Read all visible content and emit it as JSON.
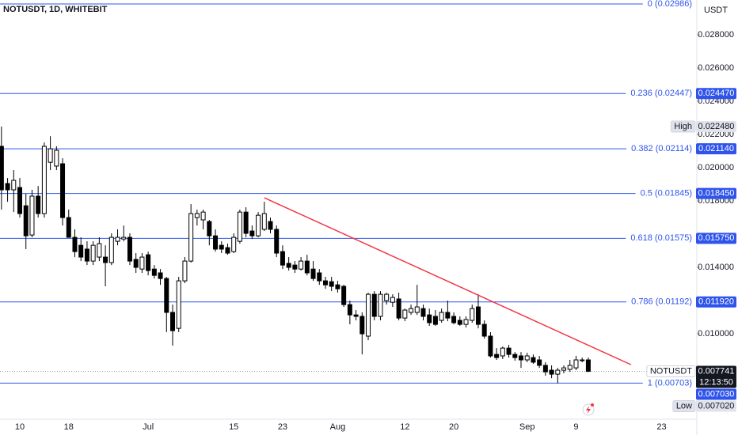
{
  "chart_data": {
    "type": "candlestick",
    "title": "NOTUSDT, 1D, WHITEBIT",
    "currency": "USDT",
    "categories": [
      null,
      null,
      null,
      "10",
      null,
      null,
      null,
      null,
      null,
      null,
      null,
      "18",
      null,
      null,
      null,
      null,
      null,
      null,
      null,
      null,
      null,
      null,
      null,
      null,
      "Jul",
      null,
      null,
      null,
      null,
      null,
      null,
      null,
      null,
      null,
      null,
      null,
      null,
      null,
      "15",
      null,
      null,
      null,
      null,
      null,
      null,
      null,
      "23",
      null,
      null,
      null,
      null,
      null,
      null,
      null,
      null,
      "Aug",
      null,
      null,
      null,
      null,
      null,
      null,
      null,
      null,
      null,
      null,
      "12",
      null,
      null,
      null,
      null,
      null,
      null,
      null,
      "20",
      null,
      null,
      null,
      null,
      null,
      null,
      null,
      null,
      null,
      null,
      null,
      "Sep",
      null,
      null,
      null,
      null,
      null,
      null,
      null,
      "9",
      null,
      null,
      null,
      null,
      null,
      null,
      null,
      null,
      null,
      null,
      null,
      null,
      null,
      "23",
      null,
      null,
      null,
      null,
      null
    ],
    "ohlc": [
      [
        0.02129,
        0.02248,
        0.01748,
        0.01867
      ],
      [
        0.01905,
        0.01938,
        0.01795,
        0.01867
      ],
      [
        0.01867,
        0.01986,
        0.01733,
        0.01924
      ],
      [
        0.01881,
        0.01938,
        0.017,
        0.01724
      ],
      [
        0.01771,
        0.01843,
        0.0151,
        0.0159
      ],
      [
        0.01595,
        0.01867,
        0.01581,
        0.01829
      ],
      [
        0.01829,
        0.0189,
        0.017,
        0.01724
      ],
      [
        0.01724,
        0.02152,
        0.017,
        0.02129
      ],
      [
        0.02033,
        0.0219,
        0.01986,
        0.02114
      ],
      [
        0.0201,
        0.02129,
        0.01986,
        0.02105
      ],
      [
        0.02024,
        0.02057,
        0.01652,
        0.017
      ],
      [
        0.017,
        0.01748,
        0.01581,
        0.01581
      ],
      [
        0.01581,
        0.01629,
        0.01462,
        0.01495
      ],
      [
        0.01533,
        0.01581,
        0.01438,
        0.01462
      ],
      [
        0.0151,
        0.01557,
        0.01414,
        0.01438
      ],
      [
        0.01438,
        0.01557,
        0.01414,
        0.01533
      ],
      [
        0.01462,
        0.01581,
        0.01438,
        0.01543
      ],
      [
        0.01462,
        0.01533,
        0.01286,
        0.01429
      ],
      [
        0.01429,
        0.01605,
        0.01414,
        0.01581
      ],
      [
        0.01557,
        0.01629,
        0.01533,
        0.01581
      ],
      [
        0.01571,
        0.01652,
        0.01557,
        0.01581
      ],
      [
        0.01581,
        0.01605,
        0.01414,
        0.01438
      ],
      [
        0.01448,
        0.01486,
        0.01367,
        0.014
      ],
      [
        0.0139,
        0.01486,
        0.01367,
        0.01462
      ],
      [
        0.01476,
        0.01495,
        0.01352,
        0.01381
      ],
      [
        0.0139,
        0.01414,
        0.01333,
        0.01352
      ],
      [
        0.01367,
        0.0139,
        0.01295,
        0.01333
      ],
      [
        0.01333,
        0.01343,
        0.0101,
        0.01129
      ],
      [
        0.01129,
        0.01176,
        0.00929,
        0.01019
      ],
      [
        0.01033,
        0.01343,
        0.0101,
        0.01319
      ],
      [
        0.01319,
        0.01462,
        0.01305,
        0.01438
      ],
      [
        0.01438,
        0.01781,
        0.01429,
        0.01724
      ],
      [
        0.017,
        0.01748,
        0.01652,
        0.01724
      ],
      [
        0.01686,
        0.01748,
        0.01629,
        0.01733
      ],
      [
        0.01676,
        0.01686,
        0.01533,
        0.0159
      ],
      [
        0.0159,
        0.01629,
        0.01495,
        0.0151
      ],
      [
        0.01533,
        0.01557,
        0.01486,
        0.0151
      ],
      [
        0.01519,
        0.01543,
        0.01476,
        0.01486
      ],
      [
        0.01495,
        0.01605,
        0.01486,
        0.01581
      ],
      [
        0.01557,
        0.01748,
        0.01543,
        0.01733
      ],
      [
        0.01733,
        0.01762,
        0.01581,
        0.01605
      ],
      [
        0.01619,
        0.01652,
        0.01571,
        0.0159
      ],
      [
        0.0159,
        0.01733,
        0.01581,
        0.01714
      ],
      [
        0.01629,
        0.01795,
        0.01619,
        0.01724
      ],
      [
        0.01676,
        0.017,
        0.01605,
        0.01629
      ],
      [
        0.01629,
        0.01652,
        0.01462,
        0.01486
      ],
      [
        0.01495,
        0.01533,
        0.0139,
        0.01414
      ],
      [
        0.01424,
        0.01462,
        0.01381,
        0.014
      ],
      [
        0.01414,
        0.01438,
        0.01367,
        0.0139
      ],
      [
        0.0139,
        0.01462,
        0.01381,
        0.01438
      ],
      [
        0.01438,
        0.01476,
        0.01352,
        0.01367
      ],
      [
        0.0139,
        0.01438,
        0.01319,
        0.01333
      ],
      [
        0.01367,
        0.0139,
        0.01295,
        0.01319
      ],
      [
        0.01319,
        0.01343,
        0.01271,
        0.01295
      ],
      [
        0.01314,
        0.01343,
        0.01257,
        0.01286
      ],
      [
        0.01295,
        0.01319,
        0.01248,
        0.01271
      ],
      [
        0.01286,
        0.01295,
        0.01162,
        0.01176
      ],
      [
        0.01176,
        0.012,
        0.01057,
        0.01114
      ],
      [
        0.01114,
        0.01143,
        0.01081,
        0.01105
      ],
      [
        0.01105,
        0.01129,
        0.00876,
        0.01
      ],
      [
        0.00986,
        0.01248,
        0.00962,
        0.01238
      ],
      [
        0.01238,
        0.01257,
        0.01081,
        0.01105
      ],
      [
        0.01105,
        0.01257,
        0.01081,
        0.01238
      ],
      [
        0.012,
        0.01248,
        0.01176,
        0.01238
      ],
      [
        0.0119,
        0.01238,
        0.01162,
        0.01219
      ],
      [
        0.0121,
        0.01248,
        0.01081,
        0.01095
      ],
      [
        0.01095,
        0.01152,
        0.01076,
        0.01143
      ],
      [
        0.01129,
        0.01176,
        0.01114,
        0.01152
      ],
      [
        0.01129,
        0.01295,
        0.01114,
        0.01162
      ],
      [
        0.01152,
        0.01176,
        0.01081,
        0.01105
      ],
      [
        0.01114,
        0.01152,
        0.01048,
        0.01067
      ],
      [
        0.01105,
        0.01143,
        0.01048,
        0.01057
      ],
      [
        0.01081,
        0.01152,
        0.01067,
        0.01129
      ],
      [
        0.01129,
        0.012,
        0.01076,
        0.01095
      ],
      [
        0.01105,
        0.01129,
        0.01057,
        0.01067
      ],
      [
        0.01081,
        0.01105,
        0.01048,
        0.01057
      ],
      [
        0.01057,
        0.01105,
        0.01038,
        0.01086
      ],
      [
        0.01081,
        0.01176,
        0.01067,
        0.01152
      ],
      [
        0.01162,
        0.01238,
        0.01033,
        0.01057
      ],
      [
        0.01057,
        0.01081,
        0.00971,
        0.00986
      ],
      [
        0.00986,
        0.0101,
        0.00857,
        0.00867
      ],
      [
        0.00876,
        0.00914,
        0.00843,
        0.00857
      ],
      [
        0.00867,
        0.00924,
        0.00848,
        0.00914
      ],
      [
        0.00914,
        0.00933,
        0.00857,
        0.00876
      ],
      [
        0.00876,
        0.0089,
        0.00838,
        0.00857
      ],
      [
        0.00867,
        0.0089,
        0.00795,
        0.00843
      ],
      [
        0.00843,
        0.00886,
        0.00829,
        0.00867
      ],
      [
        0.00857,
        0.00876,
        0.00819,
        0.00829
      ],
      [
        0.00843,
        0.00867,
        0.00795,
        0.0081
      ],
      [
        0.0081,
        0.00829,
        0.00748,
        0.00771
      ],
      [
        0.00781,
        0.0081,
        0.00733,
        0.00757
      ],
      [
        0.00757,
        0.00795,
        0.00702,
        0.00781
      ],
      [
        0.00781,
        0.0081,
        0.00762,
        0.00795
      ],
      [
        0.00786,
        0.00843,
        0.00771,
        0.0081
      ],
      [
        0.00795,
        0.00867,
        0.00781,
        0.00843
      ],
      [
        0.00838,
        0.00857,
        0.00829,
        0.00843
      ],
      [
        0.00843,
        0.00857,
        0.0077,
        0.00774
      ],
      null,
      null,
      null,
      null,
      null,
      null,
      null,
      null,
      null,
      null,
      null,
      null,
      null,
      null,
      null,
      null,
      null
    ],
    "up_color": "#ffffff",
    "down_color": "#000000",
    "wick_color": "#000000",
    "ylim": [
      0.00486,
      0.0301
    ],
    "yticks": [
      {
        "value": 0.028,
        "label": "0.028000"
      },
      {
        "value": 0.026,
        "label": "0.026000"
      },
      {
        "value": 0.024,
        "label": "0.024000"
      },
      {
        "value": 0.022,
        "label": "0.022000"
      },
      {
        "value": 0.02,
        "label": "0.020000"
      },
      {
        "value": 0.018,
        "label": "0.018000"
      },
      {
        "value": 0.014,
        "label": "0.014000"
      },
      {
        "value": 0.01,
        "label": "0.010000"
      }
    ],
    "fib_color": "#2f54eb",
    "fib_levels": [
      {
        "label": "0 (0.02986)",
        "value": 0.02986
      },
      {
        "label": "0.236 (0.02447)",
        "value": 0.02447,
        "badge": "0.024470"
      },
      {
        "label": "0.382 (0.02114)",
        "value": 0.02114,
        "badge": "0.021140"
      },
      {
        "label": "0.5 (0.01845)",
        "value": 0.01845,
        "badge": "0.018450"
      },
      {
        "label": "0.618 (0.01575)",
        "value": 0.01575,
        "badge": "0.015750"
      },
      {
        "label": "0.786 (0.01192)",
        "value": 0.01192,
        "badge": "0.011920"
      },
      {
        "label": "1 (0.00703)",
        "value": 0.00703,
        "badge": "0.007030"
      }
    ],
    "high": {
      "label": "High",
      "value": 0.02248,
      "badge": "0.022480"
    },
    "low": {
      "label": "Low",
      "value": 0.00702,
      "badge": "0.007020"
    },
    "last": {
      "label": "NOTUSDT",
      "value": 0.007741,
      "badge": "0.007741",
      "countdown": "12:13:50"
    },
    "trendline": {
      "points": [
        [
          43,
          0.01819
        ],
        [
          103,
          0.00814
        ]
      ],
      "color": "#f23645"
    }
  }
}
